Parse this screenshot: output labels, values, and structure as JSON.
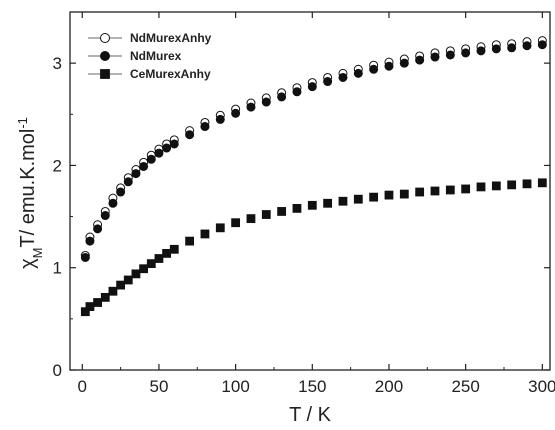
{
  "chart_data": {
    "type": "scatter",
    "xlabel": "T / K",
    "ylabel": {
      "chi": "χ",
      "sub": "M",
      "mid": "T/ emu.K.mol",
      "sup": "-1"
    },
    "xlim": [
      -8,
      305
    ],
    "ylim": [
      0,
      3.5
    ],
    "xticks": [
      0,
      50,
      100,
      150,
      200,
      250,
      300
    ],
    "yticks": [
      0,
      1,
      2,
      3
    ],
    "legend_position": "top-left",
    "series": [
      {
        "name": "NdMurexAnhy",
        "marker": "circle-open",
        "x": [
          2,
          5,
          10,
          15,
          20,
          25,
          30,
          35,
          40,
          45,
          50,
          55,
          60,
          70,
          80,
          90,
          100,
          110,
          120,
          130,
          140,
          150,
          160,
          170,
          180,
          190,
          200,
          210,
          220,
          230,
          240,
          250,
          260,
          270,
          280,
          290,
          300
        ],
        "y": [
          1.12,
          1.3,
          1.42,
          1.55,
          1.68,
          1.78,
          1.88,
          1.96,
          2.03,
          2.1,
          2.16,
          2.21,
          2.25,
          2.34,
          2.42,
          2.49,
          2.55,
          2.61,
          2.66,
          2.71,
          2.76,
          2.81,
          2.86,
          2.9,
          2.94,
          2.98,
          3.01,
          3.04,
          3.07,
          3.1,
          3.12,
          3.14,
          3.16,
          3.18,
          3.19,
          3.21,
          3.22
        ]
      },
      {
        "name": "NdMurex",
        "marker": "circle-filled",
        "x": [
          2,
          5,
          10,
          15,
          20,
          25,
          30,
          35,
          40,
          45,
          50,
          55,
          60,
          70,
          80,
          90,
          100,
          110,
          120,
          130,
          140,
          150,
          160,
          170,
          180,
          190,
          200,
          210,
          220,
          230,
          240,
          250,
          260,
          270,
          280,
          290,
          300
        ],
        "y": [
          1.1,
          1.26,
          1.38,
          1.51,
          1.63,
          1.74,
          1.84,
          1.92,
          1.99,
          2.06,
          2.12,
          2.17,
          2.21,
          2.3,
          2.38,
          2.45,
          2.51,
          2.57,
          2.62,
          2.67,
          2.72,
          2.77,
          2.82,
          2.86,
          2.9,
          2.94,
          2.97,
          3.0,
          3.03,
          3.06,
          3.08,
          3.1,
          3.12,
          3.14,
          3.15,
          3.17,
          3.18
        ]
      },
      {
        "name": "CeMurexAnhy",
        "marker": "square-filled",
        "x": [
          2,
          5,
          10,
          15,
          20,
          25,
          30,
          35,
          40,
          45,
          50,
          55,
          60,
          70,
          80,
          90,
          100,
          110,
          120,
          130,
          140,
          150,
          160,
          170,
          180,
          190,
          200,
          210,
          220,
          230,
          240,
          250,
          260,
          270,
          280,
          290,
          300
        ],
        "y": [
          0.57,
          0.62,
          0.66,
          0.71,
          0.77,
          0.83,
          0.88,
          0.94,
          0.99,
          1.04,
          1.09,
          1.14,
          1.18,
          1.26,
          1.33,
          1.39,
          1.44,
          1.48,
          1.52,
          1.55,
          1.58,
          1.61,
          1.63,
          1.65,
          1.67,
          1.69,
          1.71,
          1.72,
          1.74,
          1.75,
          1.76,
          1.77,
          1.79,
          1.8,
          1.81,
          1.82,
          1.83
        ]
      }
    ]
  }
}
